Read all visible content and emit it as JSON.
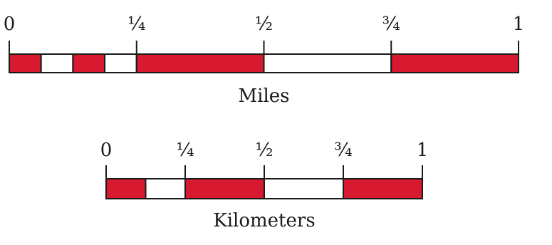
{
  "colors": {
    "fill": "#d71a30",
    "empty": "#ffffff",
    "stroke": "#1a1a1a"
  },
  "scales": [
    {
      "unit_label": "Miles",
      "ticks": [
        "0",
        "¼",
        "½",
        "¾",
        "1"
      ],
      "segments": [
        {
          "from": 0,
          "to": 0.0625,
          "filled": true
        },
        {
          "from": 0.0625,
          "to": 0.125,
          "filled": false
        },
        {
          "from": 0.125,
          "to": 0.1875,
          "filled": true
        },
        {
          "from": 0.1875,
          "to": 0.25,
          "filled": false
        },
        {
          "from": 0.25,
          "to": 0.5,
          "filled": true
        },
        {
          "from": 0.5,
          "to": 0.75,
          "filled": false
        },
        {
          "from": 0.75,
          "to": 1,
          "filled": true
        }
      ]
    },
    {
      "unit_label": "Kilometers",
      "ticks": [
        "0",
        "¼",
        "½",
        "¾",
        "1"
      ],
      "segments": [
        {
          "from": 0,
          "to": 0.125,
          "filled": true
        },
        {
          "from": 0.125,
          "to": 0.25,
          "filled": false
        },
        {
          "from": 0.25,
          "to": 0.5,
          "filled": true
        },
        {
          "from": 0.5,
          "to": 0.75,
          "filled": false
        },
        {
          "from": 0.75,
          "to": 1,
          "filled": true
        }
      ]
    }
  ]
}
